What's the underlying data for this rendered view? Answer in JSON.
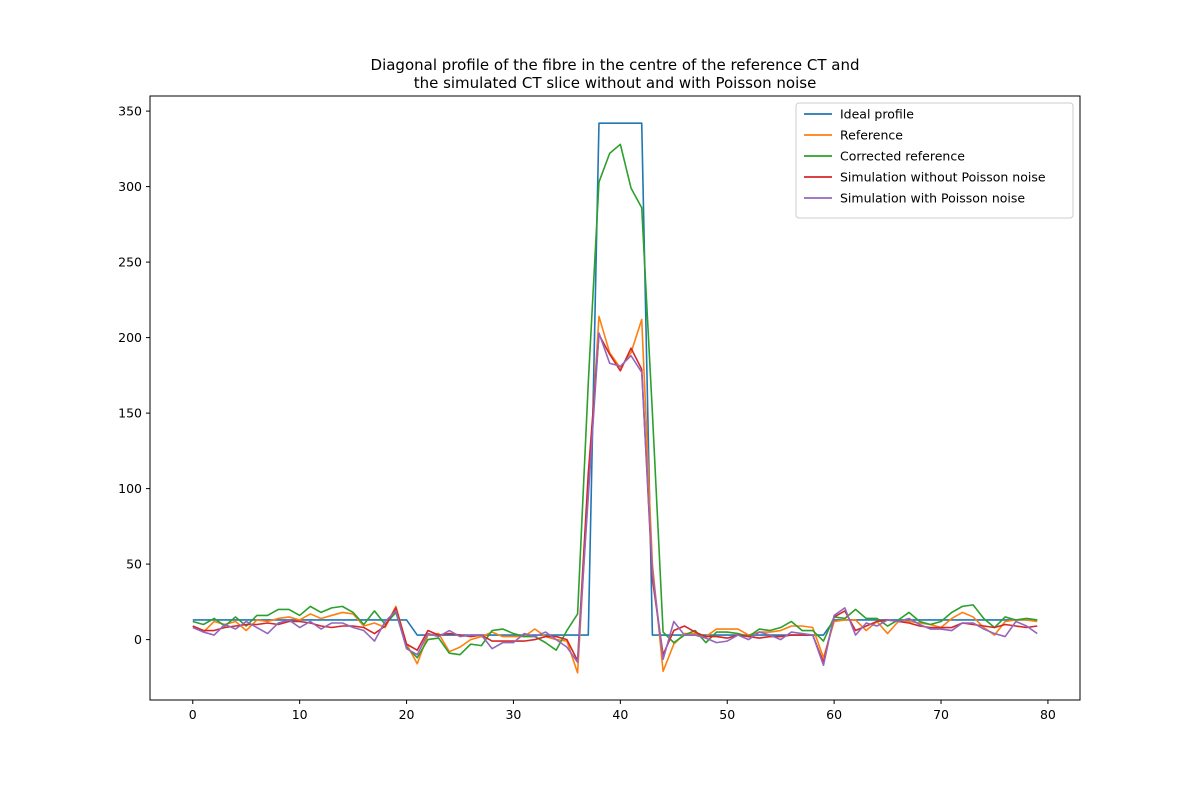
{
  "chart_data": {
    "type": "line",
    "title": [
      "Diagonal profile of the fibre in the centre of the reference CT and",
      "the simulated CT slice without and with Poisson noise"
    ],
    "xlabel": "",
    "ylabel": "",
    "xlim": [
      -4,
      83
    ],
    "ylim": [
      -40,
      360
    ],
    "xticks": [
      0,
      10,
      20,
      30,
      40,
      50,
      60,
      70,
      80
    ],
    "yticks": [
      0,
      50,
      100,
      150,
      200,
      250,
      300,
      350
    ],
    "grid": false,
    "legend_position": "upper right",
    "series": [
      {
        "name": "Ideal profile",
        "color": "#1f77b4",
        "x": [
          0,
          1,
          2,
          3,
          4,
          5,
          6,
          7,
          8,
          9,
          10,
          11,
          12,
          13,
          14,
          15,
          16,
          17,
          18,
          19,
          20,
          21,
          22,
          23,
          24,
          25,
          26,
          27,
          28,
          29,
          30,
          31,
          32,
          33,
          34,
          35,
          36,
          37,
          38,
          39,
          40,
          41,
          42,
          43,
          44,
          45,
          46,
          47,
          48,
          49,
          50,
          51,
          52,
          53,
          54,
          55,
          56,
          57,
          58,
          59,
          60,
          61,
          62,
          63,
          64,
          65,
          66,
          67,
          68,
          69,
          70,
          71,
          72,
          73,
          74,
          75,
          76,
          77,
          78,
          79
        ],
        "values": [
          13,
          13,
          13,
          13,
          13,
          13,
          13,
          13,
          13,
          13,
          13,
          13,
          13,
          13,
          13,
          13,
          13,
          13,
          13,
          13,
          13,
          3,
          3,
          3,
          3,
          3,
          3,
          3,
          3,
          3,
          3,
          3,
          3,
          3,
          3,
          3,
          3,
          3,
          342,
          342,
          342,
          342,
          342,
          3,
          3,
          3,
          3,
          3,
          3,
          3,
          3,
          3,
          3,
          3,
          3,
          3,
          3,
          3,
          3,
          3,
          13,
          13,
          13,
          13,
          13,
          13,
          13,
          13,
          13,
          13,
          13,
          13,
          13,
          13,
          13,
          13,
          13,
          13,
          13,
          13
        ]
      },
      {
        "name": "Reference",
        "color": "#ff7f0e",
        "x": [
          0,
          1,
          2,
          3,
          4,
          5,
          6,
          7,
          8,
          9,
          10,
          11,
          12,
          13,
          14,
          15,
          16,
          17,
          18,
          19,
          20,
          21,
          22,
          23,
          24,
          25,
          26,
          27,
          28,
          29,
          30,
          31,
          32,
          33,
          34,
          35,
          36,
          37,
          38,
          39,
          40,
          41,
          42,
          43,
          44,
          45,
          46,
          47,
          48,
          49,
          50,
          51,
          52,
          53,
          54,
          55,
          56,
          57,
          58,
          59,
          60,
          61,
          62,
          63,
          64,
          65,
          66,
          67,
          68,
          69,
          70,
          71,
          72,
          73,
          74,
          75,
          76,
          77,
          78,
          79
        ],
        "values": [
          9,
          5,
          12,
          10,
          12,
          6,
          13,
          12,
          14,
          15,
          13,
          17,
          14,
          16,
          18,
          17,
          9,
          11,
          8,
          22,
          -3,
          -16,
          3,
          4,
          -8,
          -5,
          0,
          2,
          5,
          2,
          2,
          2,
          7,
          2,
          0,
          -1,
          -22,
          100,
          214,
          190,
          180,
          190,
          212,
          50,
          -21,
          -3,
          4,
          4,
          2,
          7,
          7,
          7,
          3,
          5,
          5,
          6,
          9,
          9,
          8,
          -12,
          12,
          13,
          13,
          6,
          12,
          4,
          12,
          12,
          11,
          10,
          8,
          14,
          18,
          15,
          8,
          3,
          12,
          13,
          13,
          12
        ]
      },
      {
        "name": "Corrected reference",
        "color": "#2ca02c",
        "x": [
          0,
          1,
          2,
          3,
          4,
          5,
          6,
          7,
          8,
          9,
          10,
          11,
          12,
          13,
          14,
          15,
          16,
          17,
          18,
          19,
          20,
          21,
          22,
          23,
          24,
          25,
          26,
          27,
          28,
          29,
          30,
          31,
          32,
          33,
          34,
          35,
          36,
          37,
          38,
          39,
          40,
          41,
          42,
          43,
          44,
          45,
          46,
          47,
          48,
          49,
          50,
          51,
          52,
          53,
          54,
          55,
          56,
          57,
          58,
          59,
          60,
          61,
          62,
          63,
          64,
          65,
          66,
          67,
          68,
          69,
          70,
          71,
          72,
          73,
          74,
          75,
          76,
          77,
          78,
          79
        ],
        "values": [
          12,
          10,
          14,
          9,
          15,
          9,
          16,
          16,
          20,
          20,
          16,
          22,
          18,
          21,
          22,
          18,
          10,
          19,
          10,
          18,
          -5,
          -12,
          0,
          1,
          -9,
          -10,
          -3,
          -4,
          6,
          7,
          4,
          2,
          2,
          -2,
          -7,
          6,
          17,
          170,
          303,
          322,
          328,
          299,
          286,
          150,
          5,
          -2,
          3,
          6,
          -2,
          5,
          5,
          4,
          2,
          7,
          6,
          8,
          12,
          6,
          6,
          -1,
          15,
          14,
          20,
          14,
          14,
          9,
          13,
          18,
          12,
          10,
          12,
          18,
          22,
          23,
          14,
          8,
          15,
          13,
          14,
          13
        ]
      },
      {
        "name": "Simulation without Poisson noise",
        "color": "#d62728",
        "x": [
          0,
          1,
          2,
          3,
          4,
          5,
          6,
          7,
          8,
          9,
          10,
          11,
          12,
          13,
          14,
          15,
          16,
          17,
          18,
          19,
          20,
          21,
          22,
          23,
          24,
          25,
          26,
          27,
          28,
          29,
          30,
          31,
          32,
          33,
          34,
          35,
          36,
          37,
          38,
          39,
          40,
          41,
          42,
          43,
          44,
          45,
          46,
          47,
          48,
          49,
          50,
          51,
          52,
          53,
          54,
          55,
          56,
          57,
          58,
          59,
          60,
          61,
          62,
          63,
          64,
          65,
          66,
          67,
          68,
          69,
          70,
          71,
          72,
          73,
          74,
          75,
          76,
          77,
          78,
          79
        ],
        "values": [
          9,
          6,
          6,
          8,
          9,
          10,
          10,
          11,
          10,
          12,
          12,
          11,
          9,
          8,
          9,
          9,
          8,
          4,
          9,
          21,
          -3,
          -7,
          6,
          3,
          4,
          3,
          2,
          3,
          -1,
          -1,
          -1,
          -1,
          0,
          2,
          2,
          0,
          -14,
          110,
          202,
          189,
          178,
          193,
          179,
          40,
          -10,
          6,
          9,
          5,
          2,
          2,
          1,
          3,
          2,
          1,
          2,
          2,
          3,
          3,
          3,
          -15,
          15,
          19,
          6,
          9,
          12,
          13,
          12,
          11,
          9,
          8,
          8,
          8,
          11,
          10,
          9,
          8,
          10,
          9,
          8,
          9
        ]
      },
      {
        "name": "Simulation with Poisson noise",
        "color": "#9467bd",
        "x": [
          0,
          1,
          2,
          3,
          4,
          5,
          6,
          7,
          8,
          9,
          10,
          11,
          12,
          13,
          14,
          15,
          16,
          17,
          18,
          19,
          20,
          21,
          22,
          23,
          24,
          25,
          26,
          27,
          28,
          29,
          30,
          31,
          32,
          33,
          34,
          35,
          36,
          37,
          38,
          39,
          40,
          41,
          42,
          43,
          44,
          45,
          46,
          47,
          48,
          49,
          50,
          51,
          52,
          53,
          54,
          55,
          56,
          57,
          58,
          59,
          60,
          61,
          62,
          63,
          64,
          65,
          66,
          67,
          68,
          69,
          70,
          71,
          72,
          73,
          74,
          75,
          76,
          77,
          78,
          79
        ],
        "values": [
          8,
          5,
          3,
          10,
          7,
          12,
          8,
          4,
          11,
          13,
          8,
          12,
          7,
          11,
          11,
          8,
          6,
          -1,
          12,
          19,
          -6,
          -10,
          4,
          2,
          6,
          2,
          3,
          3,
          -6,
          -2,
          -2,
          4,
          2,
          5,
          0,
          -5,
          -15,
          95,
          203,
          183,
          181,
          188,
          177,
          45,
          -13,
          12,
          3,
          3,
          1,
          -2,
          -1,
          3,
          0,
          5,
          3,
          0,
          5,
          4,
          3,
          -17,
          16,
          21,
          3,
          11,
          9,
          13,
          12,
          14,
          10,
          7,
          7,
          6,
          11,
          11,
          7,
          4,
          2,
          12,
          9,
          4
        ]
      }
    ]
  }
}
